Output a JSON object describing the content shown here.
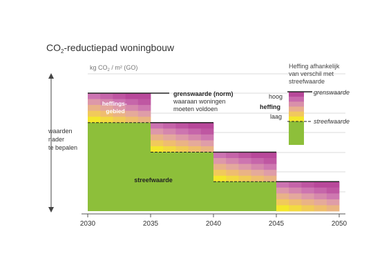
{
  "title_main": "CO",
  "title_sub": "2",
  "title_rest": "-reductiepad woningbouw",
  "unit_main": "kg CO",
  "unit_sub": "2",
  "unit_rest": " / m² (GO)",
  "side_label": [
    "waarden",
    "nader",
    "te bepalen"
  ],
  "heffingsgebied_label": [
    "heffings-",
    "gebied"
  ],
  "grenswaarde_label": "grenswaarde (norm)",
  "grenswaarde_desc": [
    "waaraan woningen",
    "moeten voldoen"
  ],
  "streefwaarde_label": "streefwaarde",
  "legend": {
    "title": [
      "Heffing afhankelijk",
      "van verschil met",
      "streefwaarde"
    ],
    "hoog": "hoog",
    "heffing": "heffing",
    "laag": "laag",
    "grenswaarde": "grenswaarde",
    "streefwaarde": "streefwaarde"
  },
  "colors": {
    "green": "#8dbf3a",
    "magenta": "#b8489a",
    "yellow": "#f2e62a",
    "grid": "#cfcfcf",
    "text": "#333333"
  },
  "chart_data": {
    "type": "area",
    "x_ticks": [
      "2030",
      "2035",
      "2040",
      "2045",
      "2050"
    ],
    "xlim": [
      2030,
      2050
    ],
    "ylabel": "kg CO2 / m² (GO)",
    "y_values_shown": false,
    "note": "relative step levels; y-axis unlabeled",
    "series": [
      {
        "name": "grenswaarde",
        "steps": [
          {
            "x0": 2030,
            "x1": 2035,
            "y": 100
          },
          {
            "x0": 2035,
            "x1": 2040,
            "y": 75
          },
          {
            "x0": 2040,
            "x1": 2045,
            "y": 50
          },
          {
            "x0": 2045,
            "x1": 2050,
            "y": 25
          }
        ]
      },
      {
        "name": "streefwaarde",
        "steps": [
          {
            "x0": 2030,
            "x1": 2035,
            "y": 75
          },
          {
            "x0": 2035,
            "x1": 2040,
            "y": 50
          },
          {
            "x0": 2040,
            "x1": 2045,
            "y": 25
          },
          {
            "x0": 2045,
            "x1": 2050,
            "y": 0
          }
        ]
      }
    ]
  }
}
